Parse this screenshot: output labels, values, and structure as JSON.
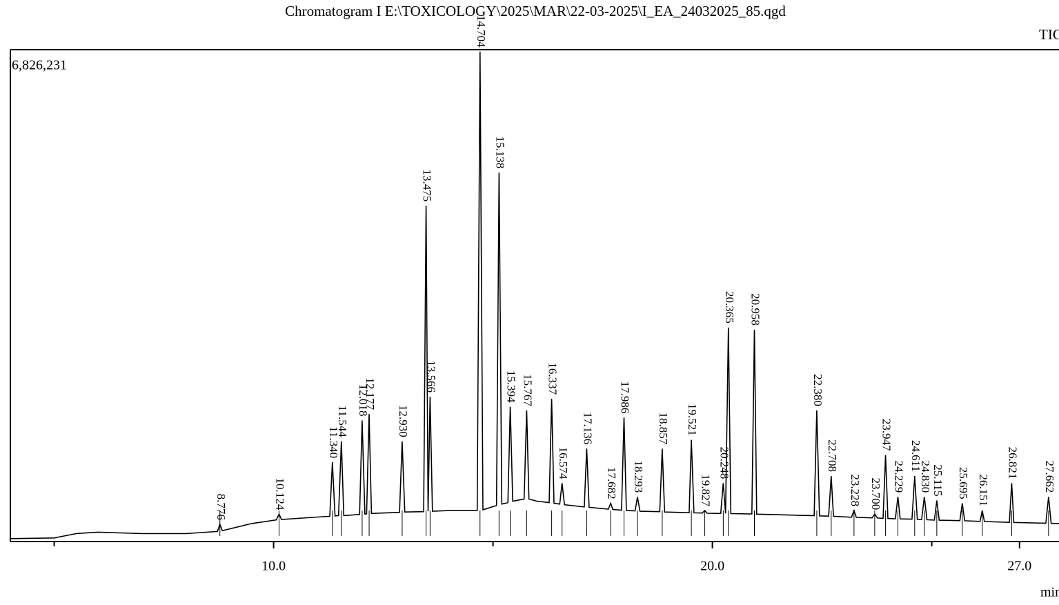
{
  "chart_data": {
    "type": "chromatogram",
    "title": "Chromatogram I E:\\TOXICOLOGY\\2025\\MAR\\22-03-2025\\I_EA_24032025_85.qgd",
    "trace_name": "TIC",
    "x_label": "min",
    "xlim": [
      4.0,
      27.9
    ],
    "ylim": [
      0,
      6826231
    ],
    "xticks": [
      {
        "value": 10,
        "label": "10.0"
      },
      {
        "value": 20,
        "label": "20.0"
      },
      {
        "value": 27,
        "label": "27.0"
      }
    ],
    "minor_xticks": [
      5,
      15,
      25
    ],
    "yticks": [
      {
        "value": 6826231,
        "label": "6,826,231"
      }
    ],
    "grid": false,
    "color": "#000000",
    "x": [
      4.0,
      5.0,
      5.5,
      6.0,
      7.0,
      8.0,
      8.72,
      8.776,
      8.83,
      9.5,
      10.06,
      10.124,
      10.18,
      11.0,
      11.28,
      11.34,
      11.4,
      11.48,
      11.544,
      11.6,
      11.96,
      12.018,
      12.08,
      12.12,
      12.177,
      12.23,
      12.87,
      12.93,
      12.99,
      13.42,
      13.475,
      13.52,
      13.566,
      13.62,
      14.0,
      14.64,
      14.704,
      14.77,
      15.08,
      15.138,
      15.2,
      15.34,
      15.394,
      15.45,
      15.71,
      15.767,
      15.82,
      16.0,
      16.28,
      16.337,
      16.39,
      16.52,
      16.574,
      16.63,
      17.08,
      17.136,
      17.19,
      17.63,
      17.682,
      17.73,
      17.93,
      17.986,
      18.04,
      18.24,
      18.293,
      18.35,
      18.8,
      18.857,
      18.91,
      19.47,
      19.521,
      19.58,
      19.77,
      19.827,
      19.88,
      20.19,
      20.248,
      20.3,
      20.365,
      20.42,
      20.9,
      20.958,
      21.01,
      22.32,
      22.38,
      22.44,
      22.65,
      22.708,
      22.76,
      23.17,
      23.228,
      23.28,
      23.64,
      23.7,
      23.76,
      23.89,
      23.947,
      24.0,
      24.17,
      24.229,
      24.28,
      24.55,
      24.611,
      24.67,
      24.77,
      24.83,
      24.89,
      25.06,
      25.115,
      25.17,
      25.64,
      25.695,
      25.75,
      26.1,
      26.151,
      26.2,
      26.77,
      26.821,
      26.87,
      27.6,
      27.662,
      27.72,
      27.9
    ],
    "values": [
      40000,
      50000,
      110000,
      130000,
      110000,
      110000,
      140000,
      240000,
      150000,
      250000,
      300000,
      380000,
      305000,
      340000,
      350000,
      1100000,
      355000,
      360000,
      1390000,
      360000,
      375000,
      1680000,
      380000,
      385000,
      1770000,
      390000,
      405000,
      1390000,
      410000,
      415000,
      4660000,
      420000,
      2010000,
      420000,
      430000,
      430000,
      6800000,
      440000,
      500000,
      5120000,
      520000,
      540000,
      1870000,
      560000,
      590000,
      1820000,
      590000,
      560000,
      540000,
      1980000,
      530000,
      520000,
      810000,
      510000,
      480000,
      1290000,
      475000,
      450000,
      530000,
      445000,
      435000,
      1720000,
      430000,
      425000,
      620000,
      420000,
      415000,
      1290000,
      410000,
      400000,
      1410000,
      398000,
      395000,
      430000,
      393000,
      390000,
      810000,
      390000,
      2970000,
      388000,
      382000,
      2940000,
      380000,
      358000,
      1820000,
      356000,
      352000,
      910000,
      350000,
      337000,
      430000,
      335000,
      328000,
      380000,
      326000,
      322000,
      1200000,
      320000,
      316000,
      620000,
      314000,
      310000,
      910000,
      308000,
      305000,
      620000,
      303000,
      298000,
      570000,
      296000,
      290000,
      530000,
      288000,
      280000,
      430000,
      278000,
      266000,
      810000,
      264000,
      255000,
      620000,
      253000,
      250000
    ],
    "peaks": {
      "x": [
        8.776,
        10.124,
        11.34,
        11.544,
        12.018,
        12.177,
        12.93,
        13.475,
        13.566,
        14.704,
        15.138,
        15.394,
        15.767,
        16.337,
        16.574,
        17.136,
        17.682,
        17.986,
        18.293,
        18.857,
        19.521,
        19.827,
        20.248,
        20.365,
        20.958,
        22.38,
        22.708,
        23.228,
        23.7,
        23.947,
        24.229,
        24.611,
        24.83,
        25.115,
        25.695,
        26.151,
        26.821,
        27.662
      ],
      "values": [
        240000,
        380000,
        1100000,
        1390000,
        1680000,
        1770000,
        1390000,
        4660000,
        2010000,
        6800000,
        5120000,
        1870000,
        1820000,
        1980000,
        810000,
        1290000,
        530000,
        1720000,
        620000,
        1290000,
        1410000,
        430000,
        810000,
        2970000,
        2940000,
        1820000,
        910000,
        430000,
        380000,
        1200000,
        620000,
        910000,
        620000,
        570000,
        530000,
        430000,
        810000,
        620000
      ],
      "x_labels": [
        "8.776",
        "10.124",
        "11.340",
        "11.544",
        "12.018",
        "12.177",
        "12.930",
        "13.475",
        "13.566",
        "14.704",
        "15.138",
        "15.394",
        "15.767",
        "16.337",
        "16.574",
        "17.136",
        "17.682",
        "17.986",
        "18.293",
        "18.857",
        "19.521",
        "19.827",
        "20.248",
        "20.365",
        "20.958",
        "22.380",
        "22.708",
        "23.228",
        "23.700",
        "23.947",
        "24.229",
        "24.611",
        "24.830",
        "25.115",
        "25.695",
        "26.151",
        "26.821",
        "27.662"
      ]
    }
  }
}
